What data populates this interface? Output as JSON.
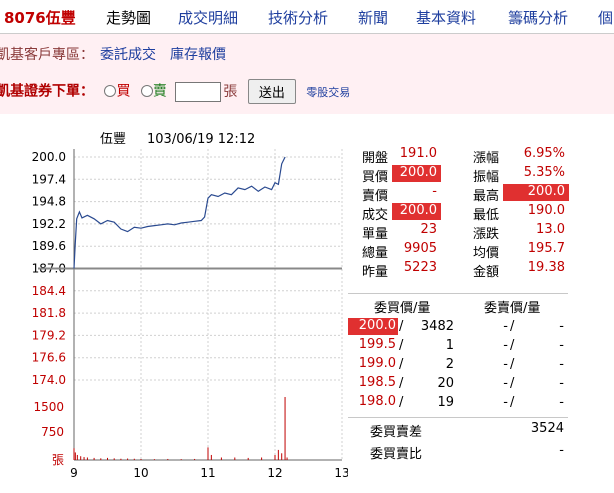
{
  "nav": {
    "stock": "8076伍豐",
    "items": [
      {
        "label": "走勢圖",
        "current": true
      },
      {
        "label": "成交明細"
      },
      {
        "label": "技術分析"
      },
      {
        "label": "新聞"
      },
      {
        "label": "基本資料"
      },
      {
        "label": "籌碼分析"
      },
      {
        "label": "個"
      }
    ]
  },
  "client_area": {
    "label": "凱基客戶專區：",
    "links": [
      "委託成交",
      "庫存報價"
    ]
  },
  "order": {
    "label": "凱基證券下單：",
    "buy": "買",
    "sell": "賣",
    "unit": "張",
    "submit": "送出",
    "odd_lot": "零股交易",
    "qty_value": ""
  },
  "chart_data": {
    "type": "line",
    "title": "伍豐",
    "datetime": "103/06/19 12:12",
    "y_ticks": [
      "200.0",
      "197.4",
      "194.8",
      "192.2",
      "189.6",
      "187.0",
      "184.4",
      "181.8",
      "179.2",
      "176.6",
      "174.0"
    ],
    "ylim": [
      174.0,
      200.0
    ],
    "reference_price": 187.0,
    "x_ticks": [
      "9",
      "10",
      "11",
      "12",
      "13"
    ],
    "price_series": [
      [
        9.0,
        187.0
      ],
      [
        9.02,
        190.0
      ],
      [
        9.04,
        192.8
      ],
      [
        9.08,
        193.6
      ],
      [
        9.12,
        192.9
      ],
      [
        9.2,
        193.2
      ],
      [
        9.3,
        192.8
      ],
      [
        9.4,
        192.2
      ],
      [
        9.5,
        192.6
      ],
      [
        9.6,
        192.4
      ],
      [
        9.7,
        191.6
      ],
      [
        9.8,
        191.3
      ],
      [
        9.9,
        191.8
      ],
      [
        10.0,
        191.7
      ],
      [
        10.1,
        191.9
      ],
      [
        10.2,
        192.0
      ],
      [
        10.3,
        192.1
      ],
      [
        10.4,
        192.2
      ],
      [
        10.5,
        192.1
      ],
      [
        10.6,
        192.3
      ],
      [
        10.7,
        192.4
      ],
      [
        10.8,
        192.5
      ],
      [
        10.9,
        192.6
      ],
      [
        10.95,
        193.0
      ],
      [
        11.0,
        195.2
      ],
      [
        11.05,
        195.6
      ],
      [
        11.15,
        195.4
      ],
      [
        11.25,
        195.8
      ],
      [
        11.35,
        195.6
      ],
      [
        11.45,
        196.4
      ],
      [
        11.55,
        196.2
      ],
      [
        11.65,
        196.6
      ],
      [
        11.75,
        196.0
      ],
      [
        11.85,
        196.5
      ],
      [
        11.95,
        196.2
      ],
      [
        12.0,
        197.0
      ],
      [
        12.05,
        196.8
      ],
      [
        12.1,
        199.2
      ],
      [
        12.15,
        200.0
      ]
    ],
    "volume_ticks": [
      "1500",
      "750",
      "張"
    ],
    "volume_max": 1500,
    "volume_series": [
      [
        9.0,
        280
      ],
      [
        9.02,
        180
      ],
      [
        9.05,
        120
      ],
      [
        9.1,
        90
      ],
      [
        9.15,
        70
      ],
      [
        9.2,
        60
      ],
      [
        9.3,
        50
      ],
      [
        9.4,
        40
      ],
      [
        9.5,
        50
      ],
      [
        9.6,
        40
      ],
      [
        9.7,
        30
      ],
      [
        9.8,
        35
      ],
      [
        9.9,
        30
      ],
      [
        10.0,
        25
      ],
      [
        10.2,
        20
      ],
      [
        10.4,
        25
      ],
      [
        10.6,
        20
      ],
      [
        10.8,
        25
      ],
      [
        11.0,
        300
      ],
      [
        11.05,
        120
      ],
      [
        11.2,
        60
      ],
      [
        11.4,
        60
      ],
      [
        11.6,
        50
      ],
      [
        11.8,
        60
      ],
      [
        12.0,
        120
      ],
      [
        12.05,
        240
      ],
      [
        12.1,
        160
      ],
      [
        12.15,
        1500
      ],
      [
        12.18,
        60
      ]
    ]
  },
  "quote": {
    "rows": [
      {
        "l1": "開盤",
        "v1": "191.0",
        "h1": false,
        "l2": "漲幅",
        "v2": "6.95%",
        "h2": false
      },
      {
        "l1": "買價",
        "v1": "200.0",
        "h1": true,
        "l2": "振幅",
        "v2": "5.35%",
        "h2": false
      },
      {
        "l1": "賣價",
        "v1": "-",
        "h1": false,
        "l2": "最高",
        "v2": "200.0",
        "h2": true
      },
      {
        "l1": "成交",
        "v1": "200.0",
        "h1": true,
        "l2": "最低",
        "v2": "190.0",
        "h2": false
      },
      {
        "l1": "單量",
        "v1": "23",
        "h1": false,
        "l2": "漲跌",
        "v2": "13.0",
        "h2": false
      },
      {
        "l1": "總量",
        "v1": "9905",
        "h1": false,
        "l2": "均價",
        "v2": "195.7",
        "h2": false
      },
      {
        "l1": "昨量",
        "v1": "5223",
        "h1": false,
        "l2": "金額",
        "v2": "19.38",
        "h2": false
      }
    ],
    "book_headers": [
      "委買價/量",
      "委賣價/量"
    ],
    "book": [
      {
        "bp": "200.0",
        "bq": "3482",
        "sp": "-",
        "sq": "-",
        "hl": true
      },
      {
        "bp": "199.5",
        "bq": "1",
        "sp": "-",
        "sq": "-",
        "hl": false
      },
      {
        "bp": "199.0",
        "bq": "2",
        "sp": "-",
        "sq": "-",
        "hl": false
      },
      {
        "bp": "198.5",
        "bq": "20",
        "sp": "-",
        "sq": "-",
        "hl": false
      },
      {
        "bp": "198.0",
        "bq": "19",
        "sp": "-",
        "sq": "-",
        "hl": false
      }
    ],
    "diff_label": "委買賣差",
    "diff_value": "3524",
    "ratio_label": "委買賣比",
    "ratio_value": "-"
  }
}
